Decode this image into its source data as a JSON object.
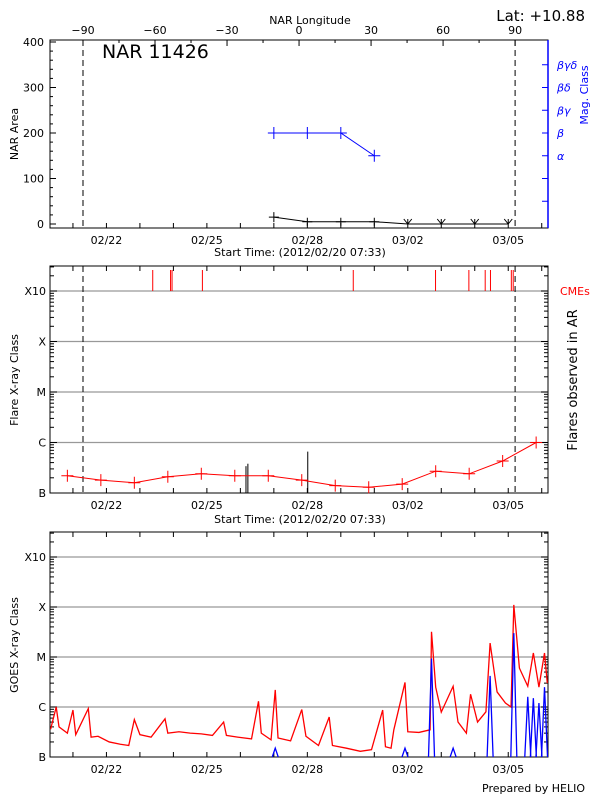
{
  "header": {
    "lat_label": "Lat: +10.88"
  },
  "footer": {
    "credit": "Prepared by HELIO"
  },
  "colors": {
    "area": "#000000",
    "mag_class": "#0000ff",
    "flare": "#ff0000",
    "cme": "#ff0000",
    "goes_long": "#ff0000",
    "goes_short": "#0000ff",
    "grid": "#999999"
  },
  "chart_data": [
    {
      "type": "line",
      "title": "NAR 11426",
      "xlabel": "Start Time: (2012/02/20 07:33)",
      "top_axis_label": "NAR Longitude",
      "top_ticks": [
        -90,
        -60,
        -30,
        0,
        30,
        60,
        90
      ],
      "ylabel": "NAR Area",
      "y2label": "Mag. Class",
      "ylim": [
        0,
        400
      ],
      "yticks": [
        0,
        100,
        200,
        300,
        400
      ],
      "xlim": [
        "2012-02-20T07:33",
        "2012-03-06T04:30"
      ],
      "xtick_labels": [
        {
          "date": "2012-02-22T00:00",
          "label": "02/22"
        },
        {
          "date": "2012-02-25T00:00",
          "label": "02/25"
        },
        {
          "date": "2012-02-28T00:00",
          "label": "02/28"
        },
        {
          "date": "2012-03-02T00:00",
          "label": "03/02"
        },
        {
          "date": "2012-03-05T00:00",
          "label": "03/05"
        }
      ],
      "limb_lines": [
        {
          "date": "2012-02-21T07:12",
          "longitude": -90
        },
        {
          "date": "2012-03-05T04:55",
          "longitude": 90
        }
      ],
      "mag_class_ticks": [
        {
          "label": "",
          "value": 50
        },
        {
          "label": "",
          "value": 100
        },
        {
          "label": "α",
          "value": 150
        },
        {
          "label": "β",
          "value": 200
        },
        {
          "label": "βγ",
          "value": 250
        },
        {
          "label": "βδ",
          "value": 300
        },
        {
          "label": "βγδ",
          "value": 350
        }
      ],
      "series": [
        {
          "key": "area",
          "times": [
            "2012-02-27T00:00",
            "2012-02-28T00:00",
            "2012-02-29T00:00",
            "2012-03-01T00:00",
            "2012-03-02T00:00",
            "2012-03-03T00:00",
            "2012-03-04T00:00",
            "2012-03-05T00:00"
          ],
          "values": [
            15,
            5,
            5,
            5,
            0,
            0,
            0,
            0
          ]
        },
        {
          "key": "mag_class",
          "times": [
            "2012-02-27T00:00",
            "2012-02-28T00:00",
            "2012-02-29T00:00",
            "2012-03-01T00:00"
          ],
          "values": [
            "β",
            "β",
            "β",
            "α"
          ]
        }
      ]
    },
    {
      "type": "line",
      "xlabel": "Start Time: (2012/02/20 07:33)",
      "ylabel": "Flare X-ray Class",
      "y2label": "Flares observed in AR",
      "yscale": "log",
      "ylim": [
        1e-07,
        0.00316
      ],
      "yticks": [
        {
          "label": "B",
          "value": 1e-07
        },
        {
          "label": "C",
          "value": 1e-06
        },
        {
          "label": "M",
          "value": 1e-05
        },
        {
          "label": "X",
          "value": 0.0001
        },
        {
          "label": "X10",
          "value": 0.001
        }
      ],
      "grid": true,
      "cme_label": "CMEs",
      "cmes": [
        "2012-02-23T09:11",
        "2012-02-23T21:57",
        "2012-02-23T23:02",
        "2012-02-24T20:47",
        "2012-02-29T08:55",
        "2012-03-02T19:53",
        "2012-03-03T19:47",
        "2012-03-04T07:29",
        "2012-03-04T11:16",
        "2012-03-05T02:13",
        "2012-03-05T03:34"
      ],
      "flares_observed": [
        {
          "time": "2012-02-26T04:01",
          "value": 3.4e-07
        },
        {
          "time": "2012-02-26T05:23",
          "value": 3.8e-07
        },
        {
          "time": "2012-02-28T00:18",
          "value": 6.6e-07
        }
      ],
      "flare_series": {
        "times": [
          "2012-02-20T20:00",
          "2012-02-21T20:00",
          "2012-02-22T20:00",
          "2012-02-23T20:00",
          "2012-02-24T20:00",
          "2012-02-25T20:00",
          "2012-02-26T20:00",
          "2012-02-27T20:00",
          "2012-02-28T20:00",
          "2012-02-29T20:00",
          "2012-03-01T20:00",
          "2012-03-02T20:00",
          "2012-03-03T20:00",
          "2012-03-04T20:00",
          "2012-03-05T20:00"
        ],
        "values": [
          2.2e-07,
          1.8e-07,
          1.6e-07,
          2.1e-07,
          2.4e-07,
          2.2e-07,
          2.2e-07,
          1.8e-07,
          1.4e-07,
          1.3e-07,
          1.5e-07,
          2.7e-07,
          2.4e-07,
          4.3e-07,
          1e-06
        ]
      }
    },
    {
      "type": "line",
      "ylabel": "GOES X-ray Class",
      "yscale": "log",
      "ylim": [
        1e-07,
        0.00316
      ],
      "yticks": [
        {
          "label": "B",
          "value": 1e-07
        },
        {
          "label": "C",
          "value": 1e-06
        },
        {
          "label": "M",
          "value": 1e-05
        },
        {
          "label": "X",
          "value": 0.0001
        },
        {
          "label": "X10",
          "value": 0.001
        }
      ],
      "grid": true,
      "series": [
        {
          "key": "goes_long",
          "points": [
            [
              "2012-02-20T08:00",
              3.6e-07
            ],
            [
              "2012-02-20T12:00",
              1e-06
            ],
            [
              "2012-02-20T14:00",
              4e-07
            ],
            [
              "2012-02-20T20:00",
              3e-07
            ],
            [
              "2012-02-21T00:00",
              8.7e-07
            ],
            [
              "2012-02-21T02:00",
              2.8e-07
            ],
            [
              "2012-02-21T11:00",
              9.3e-07
            ],
            [
              "2012-02-21T13:00",
              2.5e-07
            ],
            [
              "2012-02-21T18:00",
              2.6e-07
            ],
            [
              "2012-02-22T02:00",
              2e-07
            ],
            [
              "2012-02-22T10:00",
              1.8e-07
            ],
            [
              "2012-02-22T16:00",
              1.7e-07
            ],
            [
              "2012-02-22T20:00",
              5.6e-07
            ],
            [
              "2012-02-23T00:00",
              2.8e-07
            ],
            [
              "2012-02-23T08:00",
              2.5e-07
            ],
            [
              "2012-02-23T18:00",
              5.8e-07
            ],
            [
              "2012-02-23T20:00",
              3e-07
            ],
            [
              "2012-02-24T04:00",
              3.2e-07
            ],
            [
              "2012-02-24T12:00",
              3e-07
            ],
            [
              "2012-02-24T20:00",
              2.9e-07
            ],
            [
              "2012-02-25T04:00",
              2.7e-07
            ],
            [
              "2012-02-25T12:00",
              5e-07
            ],
            [
              "2012-02-25T14:00",
              2.7e-07
            ],
            [
              "2012-02-25T22:00",
              2.5e-07
            ],
            [
              "2012-02-26T08:00",
              2.3e-07
            ],
            [
              "2012-02-26T13:00",
              1.3e-06
            ],
            [
              "2012-02-26T15:00",
              3e-07
            ],
            [
              "2012-02-26T22:00",
              2.2e-07
            ],
            [
              "2012-02-27T01:00",
              2.2e-06
            ],
            [
              "2012-02-27T03:00",
              2.4e-07
            ],
            [
              "2012-02-27T12:00",
              2.1e-07
            ],
            [
              "2012-02-27T20:00",
              8.9e-07
            ],
            [
              "2012-02-27T23:00",
              2.6e-07
            ],
            [
              "2012-02-28T08:00",
              1.7e-07
            ],
            [
              "2012-02-28T15:40",
              6.3e-07
            ],
            [
              "2012-02-28T18:00",
              1.7e-07
            ],
            [
              "2012-02-29T04:00",
              1.5e-07
            ],
            [
              "2012-02-29T14:00",
              1.3e-07
            ],
            [
              "2012-02-29T22:00",
              1.4e-07
            ],
            [
              "2012-03-01T06:00",
              8.7e-07
            ],
            [
              "2012-03-01T08:00",
              1.6e-07
            ],
            [
              "2012-03-01T12:00",
              1.5e-07
            ],
            [
              "2012-03-01T14:00",
              3.5e-07
            ],
            [
              "2012-03-01T22:00",
              3.1e-06
            ],
            [
              "2012-03-02T00:00",
              3.2e-07
            ],
            [
              "2012-03-02T08:00",
              3.1e-07
            ],
            [
              "2012-03-02T16:00",
              3.5e-07
            ],
            [
              "2012-03-02T17:00",
              3.2e-05
            ],
            [
              "2012-03-02T20:00",
              2.5e-06
            ],
            [
              "2012-03-03T00:00",
              7.9e-07
            ],
            [
              "2012-03-03T08:30",
              2.6e-06
            ],
            [
              "2012-03-03T12:00",
              5e-07
            ],
            [
              "2012-03-03T18:00",
              3e-07
            ],
            [
              "2012-03-03T21:00",
              1.8e-06
            ],
            [
              "2012-03-04T02:00",
              5e-07
            ],
            [
              "2012-03-04T08:00",
              8e-07
            ],
            [
              "2012-03-04T11:00",
              1.9e-05
            ],
            [
              "2012-03-04T16:00",
              2e-06
            ],
            [
              "2012-03-04T22:00",
              1.2e-06
            ],
            [
              "2012-03-05T02:00",
              1e-06
            ],
            [
              "2012-03-05T04:00",
              0.00011
            ],
            [
              "2012-03-05T08:00",
              6e-06
            ],
            [
              "2012-03-05T14:00",
              2.6e-06
            ],
            [
              "2012-03-05T18:00",
              1.2e-05
            ],
            [
              "2012-03-05T22:00",
              2.5e-06
            ],
            [
              "2012-03-06T02:00",
              1.2e-05
            ],
            [
              "2012-03-06T04:00",
              3e-06
            ]
          ]
        },
        {
          "key": "goes_short",
          "points": [
            [
              "2012-02-27T01:00",
              1.5e-07
            ],
            [
              "2012-03-01T22:00",
              1.5e-07
            ],
            [
              "2012-03-02T17:00",
              9.3e-06
            ],
            [
              "2012-03-03T08:30",
              1.5e-07
            ],
            [
              "2012-03-04T11:00",
              4.2e-06
            ],
            [
              "2012-03-05T04:00",
              3e-05
            ],
            [
              "2012-03-05T14:00",
              1.6e-06
            ],
            [
              "2012-03-05T18:00",
              1.5e-06
            ],
            [
              "2012-03-05T22:00",
              1.2e-06
            ],
            [
              "2012-03-06T02:00",
              2.5e-06
            ]
          ]
        }
      ]
    }
  ]
}
